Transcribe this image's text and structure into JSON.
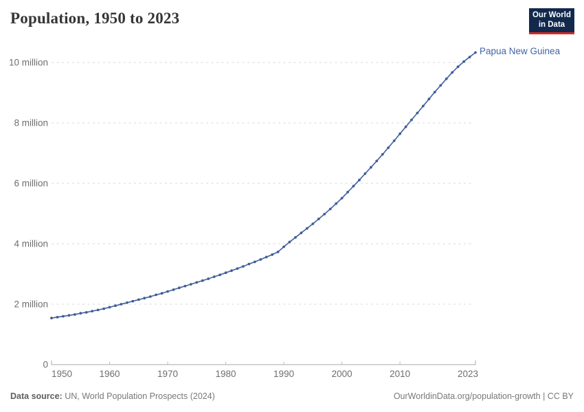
{
  "header": {
    "title": "Population, 1950 to 2023",
    "logo": {
      "line1": "Our World",
      "line2": "in Data",
      "bg_color": "#12294d",
      "stripe_color": "#dc2a1e"
    }
  },
  "chart_data": {
    "type": "line",
    "title": "Population, 1950 to 2023",
    "entity_label": "Papua New Guinea",
    "unit": "millions of people",
    "line_color": "#4766a2",
    "grid": "horizontal dashed",
    "legend_position": "end-of-line label",
    "xlim": [
      1950,
      2023
    ],
    "ylim": [
      0,
      10.5
    ],
    "x_tick_labels": [
      "1950",
      "1960",
      "1970",
      "1980",
      "1990",
      "2000",
      "2010",
      "2023"
    ],
    "x_tick_values": [
      1950,
      1960,
      1970,
      1980,
      1990,
      2000,
      2010,
      2023
    ],
    "y_tick_labels": [
      "0",
      "2 million",
      "4 million",
      "6 million",
      "8 million",
      "10 million"
    ],
    "y_tick_values": [
      0,
      2,
      4,
      6,
      8,
      10
    ],
    "series": [
      {
        "name": "Papua New Guinea",
        "x": [
          1950,
          1951,
          1952,
          1953,
          1954,
          1955,
          1956,
          1957,
          1958,
          1959,
          1960,
          1961,
          1962,
          1963,
          1964,
          1965,
          1966,
          1967,
          1968,
          1969,
          1970,
          1971,
          1972,
          1973,
          1974,
          1975,
          1976,
          1977,
          1978,
          1979,
          1980,
          1981,
          1982,
          1983,
          1984,
          1985,
          1986,
          1987,
          1988,
          1989,
          1990,
          1991,
          1992,
          1993,
          1994,
          1995,
          1996,
          1997,
          1998,
          1999,
          2000,
          2001,
          2002,
          2003,
          2004,
          2005,
          2006,
          2007,
          2008,
          2009,
          2010,
          2011,
          2012,
          2013,
          2014,
          2015,
          2016,
          2017,
          2018,
          2019,
          2020,
          2021,
          2022,
          2023
        ],
        "values": [
          1.54,
          1.57,
          1.6,
          1.63,
          1.66,
          1.7,
          1.73,
          1.77,
          1.81,
          1.85,
          1.9,
          1.95,
          2.0,
          2.05,
          2.1,
          2.15,
          2.2,
          2.25,
          2.31,
          2.36,
          2.42,
          2.48,
          2.54,
          2.6,
          2.66,
          2.72,
          2.78,
          2.84,
          2.91,
          2.97,
          3.04,
          3.11,
          3.18,
          3.25,
          3.33,
          3.4,
          3.48,
          3.56,
          3.64,
          3.73,
          3.9,
          4.06,
          4.21,
          4.36,
          4.51,
          4.66,
          4.82,
          4.98,
          5.15,
          5.33,
          5.51,
          5.71,
          5.91,
          6.11,
          6.32,
          6.53,
          6.74,
          6.96,
          7.18,
          7.41,
          7.64,
          7.87,
          8.1,
          8.33,
          8.56,
          8.79,
          9.02,
          9.24,
          9.46,
          9.67,
          9.86,
          10.03,
          10.18,
          10.33
        ]
      }
    ]
  },
  "footer": {
    "source_label": "Data source:",
    "source_text": "UN, World Population Prospects (2024)",
    "credit": "OurWorldinData.org/population-growth | CC BY"
  }
}
